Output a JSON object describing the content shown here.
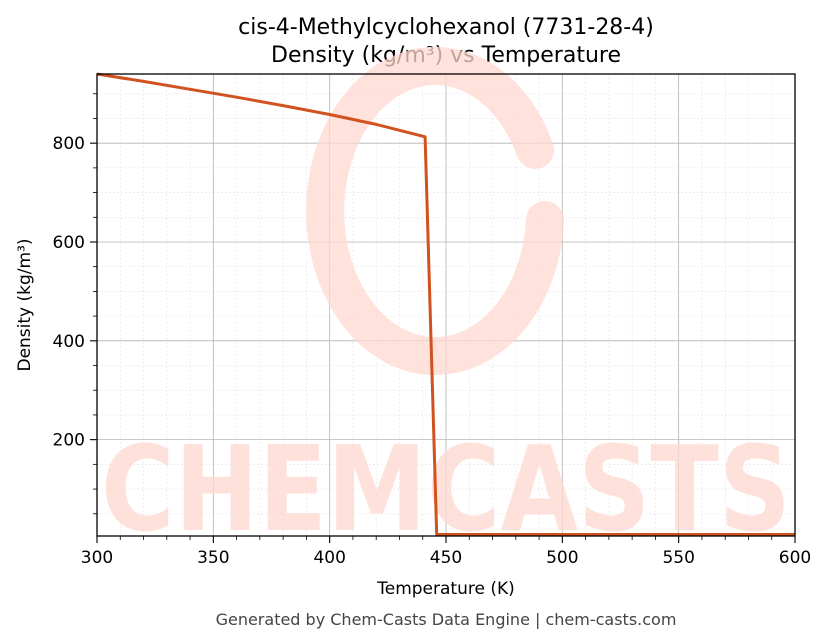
{
  "chart_data": {
    "type": "line",
    "title": "cis-4-Methylcyclohexanol (7731-28-4)",
    "subtitle": "Density (kg/m³) vs Temperature",
    "xlabel": "Temperature (K)",
    "ylabel": "Density (kg/m³)",
    "xlim": [
      300,
      600
    ],
    "ylim": [
      5,
      940
    ],
    "x_ticks": [
      300,
      350,
      400,
      450,
      500,
      550,
      600
    ],
    "y_ticks": [
      200,
      400,
      600,
      800
    ],
    "grid": true,
    "series": [
      {
        "color": "#d2521f",
        "x": [
          300,
          320,
          340,
          360,
          380,
          400,
          420,
          441,
          446,
          450,
          500,
          550,
          600
        ],
        "y": [
          940,
          925,
          909,
          893,
          876,
          858,
          838,
          813,
          8,
          8,
          8,
          8,
          8
        ]
      }
    ]
  },
  "watermark": {
    "text": "CHEMCASTS",
    "color": "#ffd8d0"
  },
  "footer": "Generated by Chem-Casts Data Engine | chem-casts.com"
}
